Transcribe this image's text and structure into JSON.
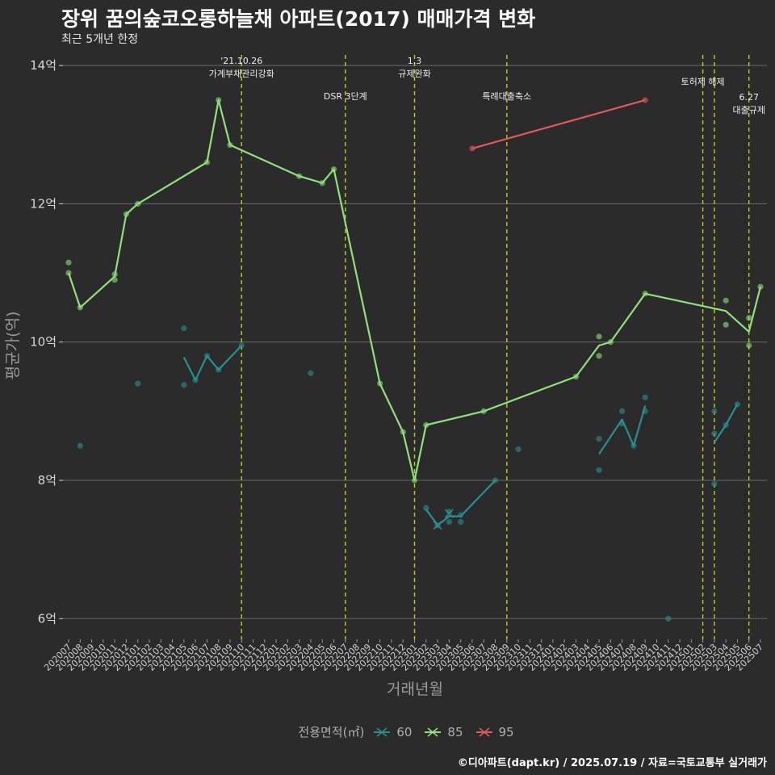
{
  "header": {
    "title": "장위 꿈의숲코오롱하늘채 아파트(2017) 매매가격 변화",
    "subtitle": "최근 5개년 한정"
  },
  "caption": "©디아파트(dapt.kr) / 2025.07.19 / 자료=국토교통부 실거래가",
  "legend": {
    "title": "전용면적(㎡)",
    "items": [
      {
        "label": "60",
        "color": "#2a8f93"
      },
      {
        "label": "85",
        "color": "#90e07c"
      },
      {
        "label": "95",
        "color": "#e05a5a"
      }
    ]
  },
  "chart_data": {
    "type": "line",
    "title": "장위 꿈의숲코오롱하늘채 아파트(2017) 매매가격 변화",
    "xlabel": "거래년월",
    "ylabel": "평균가(억)",
    "ylim": [
      5.7,
      14.2
    ],
    "yticks": [
      {
        "value": 6,
        "label": "6억"
      },
      {
        "value": 8,
        "label": "8억"
      },
      {
        "value": 10,
        "label": "10억"
      },
      {
        "value": 12,
        "label": "12억"
      },
      {
        "value": 14,
        "label": "14억"
      }
    ],
    "categories": [
      "202007",
      "202008",
      "202009",
      "202010",
      "202011",
      "202012",
      "202101",
      "202102",
      "202103",
      "202104",
      "202105",
      "202106",
      "202107",
      "202108",
      "202109",
      "202110",
      "202111",
      "202112",
      "202201",
      "202202",
      "202203",
      "202204",
      "202205",
      "202206",
      "202207",
      "202208",
      "202209",
      "202210",
      "202211",
      "202212",
      "202301",
      "202302",
      "202303",
      "202304",
      "202305",
      "202306",
      "202307",
      "202308",
      "202309",
      "202310",
      "202311",
      "202312",
      "202401",
      "202402",
      "202403",
      "202404",
      "202405",
      "202406",
      "202407",
      "202408",
      "202409",
      "202410",
      "202411",
      "202412",
      "202501",
      "202502",
      "202503",
      "202504",
      "202505",
      "202506",
      "202507"
    ],
    "series": [
      {
        "name": "60",
        "color": "#2a8f93",
        "line_segments": [
          [
            [
              "202105",
              9.78
            ],
            [
              "202106",
              9.45
            ],
            [
              "202107",
              9.8
            ],
            [
              "202108",
              9.6
            ],
            [
              "202110",
              9.95
            ]
          ],
          [
            [
              "202302",
              7.58
            ],
            [
              "202303",
              7.35
            ],
            [
              "202304",
              7.48
            ],
            [
              "202305",
              7.48
            ],
            [
              "202308",
              8.0
            ]
          ],
          [
            [
              "202405",
              8.38
            ],
            [
              "202407",
              8.88
            ],
            [
              "202408",
              8.5
            ],
            [
              "202409",
              9.08
            ]
          ],
          [
            [
              "202503",
              8.55
            ],
            [
              "202504",
              8.8
            ],
            [
              "202505",
              9.1
            ]
          ]
        ],
        "points": [
          [
            "202008",
            8.5
          ],
          [
            "202101",
            9.4
          ],
          [
            "202105",
            10.2
          ],
          [
            "202105",
            9.38
          ],
          [
            "202106",
            9.45
          ],
          [
            "202107",
            9.8
          ],
          [
            "202108",
            9.6
          ],
          [
            "202110",
            9.95
          ],
          [
            "202204",
            9.55
          ],
          [
            "202302",
            7.6
          ],
          [
            "202303",
            7.35
          ],
          [
            "202304",
            7.4
          ],
          [
            "202304",
            7.55
          ],
          [
            "202305",
            7.4
          ],
          [
            "202305",
            7.5
          ],
          [
            "202308",
            8.0
          ],
          [
            "202310",
            8.45
          ],
          [
            "202405",
            8.15
          ],
          [
            "202405",
            8.6
          ],
          [
            "202407",
            8.82
          ],
          [
            "202407",
            9.0
          ],
          [
            "202408",
            8.5
          ],
          [
            "202409",
            9.0
          ],
          [
            "202409",
            9.2
          ],
          [
            "202411",
            6.0
          ],
          [
            "202503",
            7.95
          ],
          [
            "202503",
            8.68
          ],
          [
            "202503",
            9.0
          ],
          [
            "202504",
            8.8
          ],
          [
            "202505",
            9.1
          ]
        ]
      },
      {
        "name": "85",
        "color": "#90e07c",
        "line_segments": [
          [
            [
              "202007",
              11.0
            ],
            [
              "202008",
              10.5
            ],
            [
              "202011",
              10.95
            ],
            [
              "202012",
              11.85
            ],
            [
              "202101",
              12.0
            ],
            [
              "202107",
              12.6
            ],
            [
              "202108",
              13.5
            ],
            [
              "202109",
              12.85
            ],
            [
              "202203",
              12.4
            ],
            [
              "202205",
              12.3
            ],
            [
              "202206",
              12.5
            ],
            [
              "202210",
              9.4
            ],
            [
              "202212",
              8.7
            ],
            [
              "202301",
              8.0
            ],
            [
              "202302",
              8.8
            ],
            [
              "202307",
              9.0
            ],
            [
              "202403",
              9.5
            ],
            [
              "202405",
              9.95
            ],
            [
              "202406",
              10.0
            ],
            [
              "202409",
              10.7
            ],
            [
              "202504",
              10.45
            ],
            [
              "202506",
              10.15
            ],
            [
              "202507",
              10.8
            ]
          ]
        ],
        "points": [
          [
            "202007",
            11.0
          ],
          [
            "202007",
            11.15
          ],
          [
            "202008",
            10.5
          ],
          [
            "202011",
            10.9
          ],
          [
            "202011",
            10.98
          ],
          [
            "202012",
            11.85
          ],
          [
            "202101",
            12.0
          ],
          [
            "202107",
            12.6
          ],
          [
            "202108",
            13.5
          ],
          [
            "202109",
            12.85
          ],
          [
            "202203",
            12.4
          ],
          [
            "202205",
            12.3
          ],
          [
            "202206",
            12.5
          ],
          [
            "202210",
            9.4
          ],
          [
            "202212",
            8.7
          ],
          [
            "202301",
            8.0
          ],
          [
            "202302",
            8.8
          ],
          [
            "202307",
            9.0
          ],
          [
            "202403",
            9.5
          ],
          [
            "202405",
            10.08
          ],
          [
            "202405",
            9.8
          ],
          [
            "202406",
            10.0
          ],
          [
            "202409",
            10.7
          ],
          [
            "202504",
            10.6
          ],
          [
            "202504",
            10.25
          ],
          [
            "202506",
            10.35
          ],
          [
            "202506",
            9.95
          ],
          [
            "202507",
            10.8
          ]
        ]
      },
      {
        "name": "95",
        "color": "#e05a5a",
        "line_segments": [
          [
            [
              "202306",
              12.8
            ],
            [
              "202409",
              13.5
            ]
          ]
        ],
        "points": [
          [
            "202306",
            12.8
          ],
          [
            "202409",
            13.5
          ]
        ]
      }
    ],
    "events": [
      {
        "at": "202110",
        "lines": [
          "'21.10.26",
          "가계부채관리강화"
        ],
        "level": 0
      },
      {
        "at": "202207",
        "lines": [
          "DSR 3단계"
        ],
        "level": 2
      },
      {
        "at": "202301",
        "lines": [
          "1.3",
          "규제완화"
        ],
        "level": 0
      },
      {
        "at": "202309",
        "lines": [
          "특례대출축소"
        ],
        "level": 2
      },
      {
        "at": "202502",
        "lines": [
          "토허제 해제"
        ],
        "level": 1
      },
      {
        "at": "202503",
        "lines": [],
        "level": 1
      },
      {
        "at": "202506",
        "lines": [
          "6.27",
          "대출규제"
        ],
        "level": 3
      }
    ]
  }
}
